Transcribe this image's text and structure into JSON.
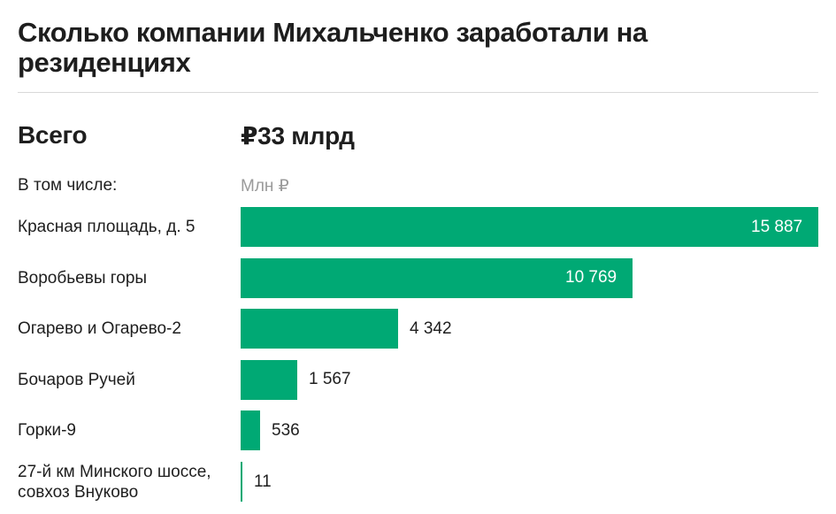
{
  "title": "Сколько компании Михальченко заработали на резиденциях",
  "total": {
    "label": "Всего",
    "value": "₽33 млрд"
  },
  "subheader": {
    "label": "В том числе:",
    "unit": "Млн ₽"
  },
  "colors": {
    "bar": "#00a974",
    "text": "#1e1e1e",
    "muted": "#9a9a9a"
  },
  "chart_data": {
    "type": "bar",
    "orientation": "horizontal",
    "categories": [
      "Красная площадь, д. 5",
      "Воробьевы горы",
      "Огарево и Огарево-2",
      "Бочаров Ручей",
      "Горки-9",
      "27-й км Минского шоссе, совхоз Внуково"
    ],
    "values": [
      15887,
      10769,
      4342,
      1567,
      536,
      11
    ],
    "value_labels": [
      "15 887",
      "10 769",
      "4 342",
      "1 567",
      "536",
      "11"
    ],
    "xlim": [
      0,
      15887
    ],
    "grid": false
  }
}
